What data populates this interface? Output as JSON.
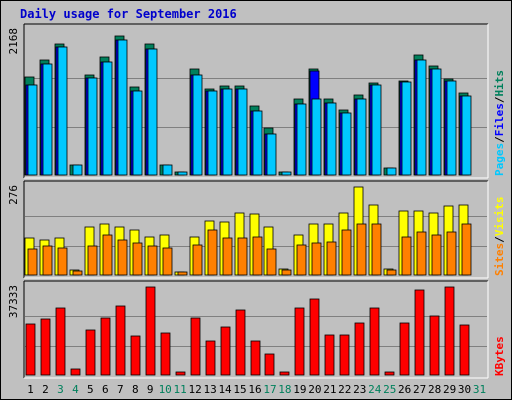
{
  "page": {
    "title": "Daily usage for September 2016"
  },
  "chart_data": [
    {
      "type": "bar",
      "panel": "hits-files-pages",
      "max_label": "2168",
      "max": 2168,
      "legend": [
        {
          "name": "Pages",
          "color": "#00C8FF"
        },
        {
          "sep": "/"
        },
        {
          "name": "Files",
          "color": "#0000FF"
        },
        {
          "sep": "/"
        },
        {
          "name": "Hits",
          "color": "#00805C"
        }
      ],
      "categories": [
        "1",
        "2",
        "3",
        "4",
        "5",
        "6",
        "7",
        "8",
        "9",
        "10",
        "11",
        "12",
        "13",
        "14",
        "15",
        "16",
        "17",
        "18",
        "19",
        "20",
        "21",
        "22",
        "23",
        "24",
        "25",
        "26",
        "27",
        "28",
        "29",
        "30",
        "31"
      ],
      "series": [
        {
          "name": "Hits",
          "color": "#00805C",
          "values": [
            1460,
            1720,
            1960,
            150,
            1500,
            1760,
            2080,
            1320,
            1960,
            150,
            50,
            1590,
            1290,
            1330,
            1330,
            1030,
            700,
            40,
            1140,
            1590,
            1130,
            970,
            1200,
            1380,
            100,
            1410,
            1790,
            1630,
            1430,
            1220,
            0
          ]
        },
        {
          "name": "Files",
          "color": "#0000FF",
          "values": [
            1350,
            1660,
            1910,
            0,
            1450,
            1690,
            2020,
            1260,
            1890,
            0,
            0,
            1500,
            1250,
            1280,
            1280,
            960,
            620,
            0,
            1060,
            1560,
            1080,
            930,
            1140,
            1340,
            0,
            1390,
            1720,
            1590,
            1400,
            1180,
            0
          ]
        },
        {
          "name": "Pages",
          "color": "#00C8FF",
          "values": [
            1350,
            1660,
            1910,
            150,
            1450,
            1690,
            2020,
            1260,
            1890,
            150,
            50,
            1500,
            1250,
            1280,
            1280,
            960,
            620,
            40,
            1060,
            1140,
            1080,
            930,
            1140,
            1340,
            100,
            1390,
            1720,
            1590,
            1400,
            1180,
            0
          ]
        }
      ]
    },
    {
      "type": "bar",
      "panel": "visits-sites",
      "max_label": "276",
      "max": 276,
      "legend": [
        {
          "name": "Sites",
          "color": "#FF8000"
        },
        {
          "sep": "/"
        },
        {
          "name": "Visits",
          "color": "#FFFF00"
        }
      ],
      "categories": [
        "1",
        "2",
        "3",
        "4",
        "5",
        "6",
        "7",
        "8",
        "9",
        "10",
        "11",
        "12",
        "13",
        "14",
        "15",
        "16",
        "17",
        "18",
        "19",
        "20",
        "21",
        "22",
        "23",
        "24",
        "25",
        "26",
        "27",
        "28",
        "29",
        "30",
        "31"
      ],
      "series": [
        {
          "name": "Visits",
          "color": "#FFFF00",
          "values": [
            115,
            110,
            115,
            15,
            150,
            160,
            150,
            140,
            120,
            125,
            10,
            120,
            170,
            165,
            195,
            190,
            150,
            18,
            125,
            160,
            160,
            195,
            276,
            220,
            20,
            200,
            200,
            195,
            215,
            220,
            0
          ]
        },
        {
          "name": "Sites",
          "color": "#FF8000",
          "values": [
            80,
            90,
            85,
            12,
            90,
            125,
            110,
            100,
            90,
            85,
            10,
            95,
            140,
            115,
            115,
            120,
            80,
            15,
            95,
            100,
            105,
            140,
            160,
            160,
            16,
            120,
            135,
            125,
            135,
            160,
            0
          ]
        }
      ]
    },
    {
      "type": "bar",
      "panel": "kbytes",
      "max_label": "37333",
      "max": 37333,
      "legend": [
        {
          "name": "KBytes",
          "color": "#FF0000"
        }
      ],
      "categories": [
        "1",
        "2",
        "3",
        "4",
        "5",
        "6",
        "7",
        "8",
        "9",
        "10",
        "11",
        "12",
        "13",
        "14",
        "15",
        "16",
        "17",
        "18",
        "19",
        "20",
        "21",
        "22",
        "23",
        "24",
        "25",
        "26",
        "27",
        "28",
        "29",
        "30",
        "31"
      ],
      "series": [
        {
          "name": "KBytes",
          "color": "#FF0000",
          "values": [
            21500,
            23900,
            28400,
            2500,
            19100,
            24200,
            29400,
            16400,
            37300,
            17800,
            1300,
            24000,
            14600,
            20300,
            27600,
            14300,
            9100,
            1300,
            28400,
            32200,
            16900,
            16900,
            22000,
            28400,
            1300,
            21900,
            36000,
            25000,
            37333,
            21000,
            0
          ]
        }
      ]
    }
  ],
  "x_axis": {
    "day_labels": [
      "1",
      "2",
      "3",
      "4",
      "5",
      "6",
      "7",
      "8",
      "9",
      "10",
      "11",
      "12",
      "13",
      "14",
      "15",
      "16",
      "17",
      "18",
      "19",
      "20",
      "21",
      "22",
      "23",
      "24",
      "25",
      "26",
      "27",
      "28",
      "29",
      "30",
      "31"
    ],
    "weekend_days": [
      3,
      4,
      10,
      11,
      17,
      18,
      24,
      25,
      31
    ],
    "weekday_color": "#000000",
    "weekend_color": "#00805C"
  }
}
